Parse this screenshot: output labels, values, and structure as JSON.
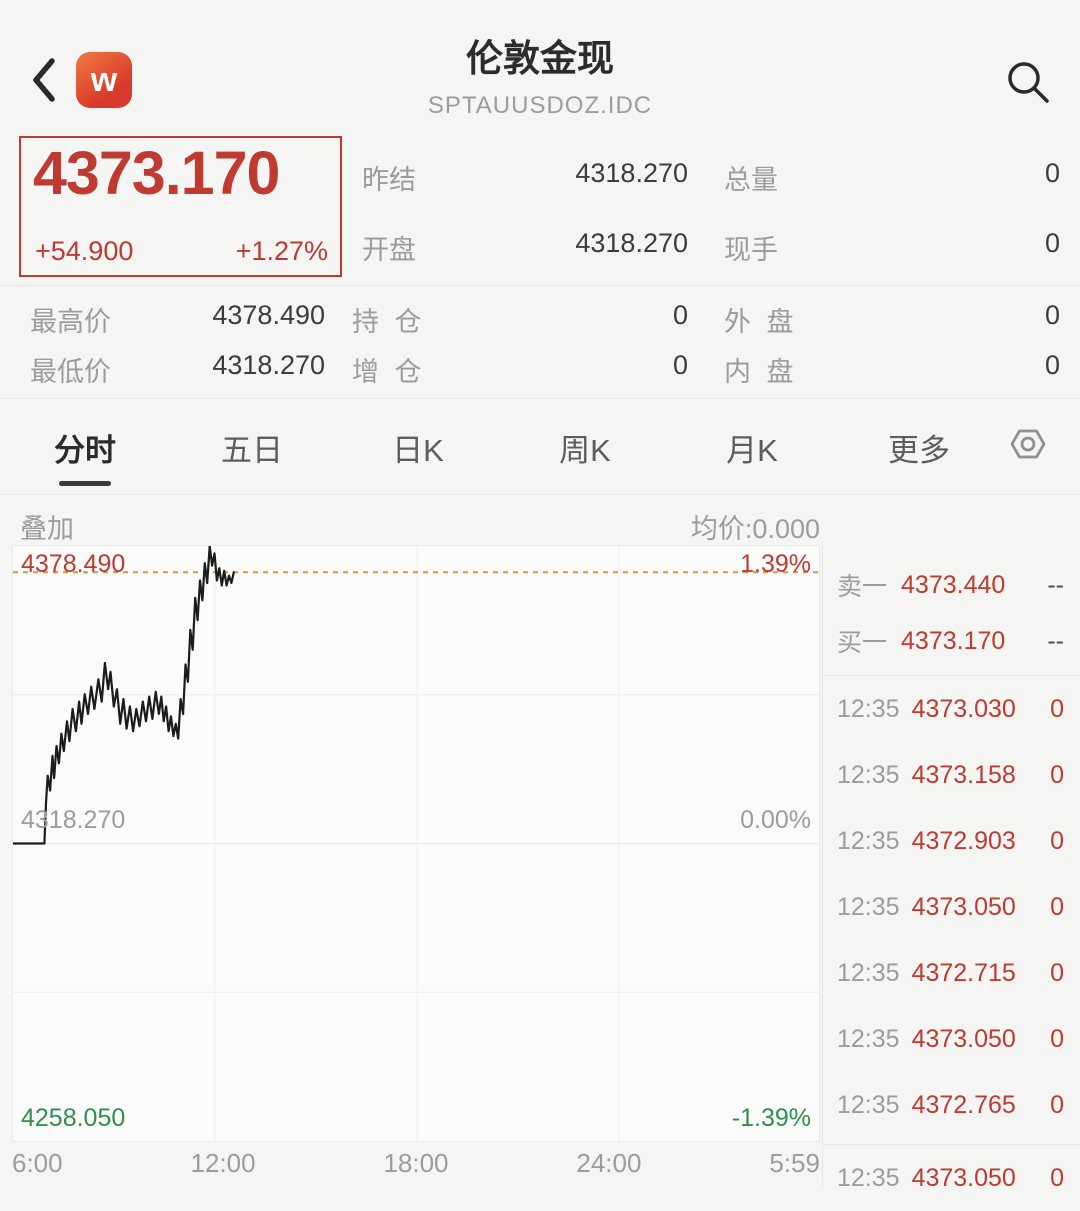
{
  "header": {
    "title": "伦敦金现",
    "subtitle": "SPTAUUSDOZ.IDC",
    "logo_text": "w"
  },
  "quote": {
    "last_price": "4373.170",
    "change": "+54.900",
    "change_percent": "+1.27%"
  },
  "stats": {
    "prev_settle_label": "昨结",
    "prev_settle": "4318.270",
    "total_volume_label": "总量",
    "total_volume": "0",
    "open_label": "开盘",
    "open": "4318.270",
    "current_hand_label": "现手",
    "current_hand": "0",
    "high_label": "最高价",
    "high": "4378.490",
    "open_interest_label": "持 仓",
    "open_interest": "0",
    "outer_label": "外 盘",
    "outer": "0",
    "low_label": "最低价",
    "low": "4318.270",
    "interest_change_label": "增 仓",
    "interest_change": "0",
    "inner_label": "内 盘",
    "inner": "0"
  },
  "tabs": [
    {
      "label": "分时",
      "active": true
    },
    {
      "label": "五日",
      "active": false
    },
    {
      "label": "日K",
      "active": false
    },
    {
      "label": "周K",
      "active": false
    },
    {
      "label": "月K",
      "active": false
    },
    {
      "label": "更多",
      "active": false
    }
  ],
  "chart_header": {
    "overlay": "叠加",
    "average": "均价:0.000"
  },
  "chart_data": {
    "type": "line",
    "title": "伦敦金现 分时走势",
    "y_max": 4378.49,
    "y_min": 4258.05,
    "prev_close": 4318.27,
    "last_price": 4373.17,
    "ylim": [
      4258.05,
      4378.49
    ],
    "grid": true,
    "x_ticks": [
      "6:00",
      "12:00",
      "18:00",
      "24:00",
      "5:59"
    ],
    "labels": {
      "high": "4378.490",
      "high_pct": "1.39%",
      "mid": "4318.270",
      "mid_pct": "0.00%",
      "low": "4258.050",
      "low_pct": "-1.39%"
    },
    "points": [
      [
        0.0,
        4318.27
      ],
      [
        0.039,
        4318.27
      ],
      [
        0.041,
        4326.5
      ],
      [
        0.043,
        4332.0
      ],
      [
        0.046,
        4329.0
      ],
      [
        0.049,
        4336.0
      ],
      [
        0.051,
        4331.5
      ],
      [
        0.054,
        4338.0
      ],
      [
        0.057,
        4334.5
      ],
      [
        0.06,
        4340.5
      ],
      [
        0.063,
        4337.0
      ],
      [
        0.067,
        4343.0
      ],
      [
        0.07,
        4339.0
      ],
      [
        0.074,
        4345.5
      ],
      [
        0.078,
        4341.0
      ],
      [
        0.082,
        4347.0
      ],
      [
        0.085,
        4342.5
      ],
      [
        0.089,
        4348.5
      ],
      [
        0.093,
        4344.5
      ],
      [
        0.097,
        4350.0
      ],
      [
        0.101,
        4345.5
      ],
      [
        0.106,
        4351.5
      ],
      [
        0.11,
        4347.0
      ],
      [
        0.114,
        4354.8
      ],
      [
        0.118,
        4349.5
      ],
      [
        0.121,
        4353.0
      ],
      [
        0.125,
        4346.0
      ],
      [
        0.129,
        4349.5
      ],
      [
        0.133,
        4342.5
      ],
      [
        0.137,
        4347.5
      ],
      [
        0.141,
        4341.5
      ],
      [
        0.145,
        4346.0
      ],
      [
        0.149,
        4341.0
      ],
      [
        0.153,
        4345.5
      ],
      [
        0.157,
        4342.0
      ],
      [
        0.161,
        4347.0
      ],
      [
        0.165,
        4343.0
      ],
      [
        0.169,
        4348.0
      ],
      [
        0.173,
        4343.5
      ],
      [
        0.177,
        4349.0
      ],
      [
        0.181,
        4344.5
      ],
      [
        0.184,
        4348.0
      ],
      [
        0.187,
        4343.0
      ],
      [
        0.19,
        4346.0
      ],
      [
        0.193,
        4341.0
      ],
      [
        0.196,
        4344.0
      ],
      [
        0.199,
        4340.0
      ],
      [
        0.202,
        4342.5
      ],
      [
        0.205,
        4339.5
      ],
      [
        0.208,
        4347.5
      ],
      [
        0.211,
        4344.5
      ],
      [
        0.214,
        4354.5
      ],
      [
        0.217,
        4351.0
      ],
      [
        0.22,
        4361.5
      ],
      [
        0.223,
        4357.5
      ],
      [
        0.226,
        4368.0
      ],
      [
        0.229,
        4363.5
      ],
      [
        0.232,
        4371.5
      ],
      [
        0.235,
        4367.5
      ],
      [
        0.238,
        4375.0
      ],
      [
        0.241,
        4371.0
      ],
      [
        0.244,
        4378.49
      ],
      [
        0.247,
        4374.5
      ],
      [
        0.25,
        4377.0
      ],
      [
        0.253,
        4371.5
      ],
      [
        0.256,
        4374.0
      ],
      [
        0.259,
        4370.5
      ],
      [
        0.262,
        4373.5
      ],
      [
        0.265,
        4370.5
      ],
      [
        0.268,
        4372.5
      ],
      [
        0.271,
        4371.0
      ],
      [
        0.274,
        4373.17
      ]
    ]
  },
  "order_book": {
    "sell": {
      "label": "卖一",
      "price": "4373.440",
      "volume": "--"
    },
    "buy": {
      "label": "买一",
      "price": "4373.170",
      "volume": "--"
    }
  },
  "trades": [
    {
      "time": "12:35",
      "price": "4373.030",
      "volume": "0"
    },
    {
      "time": "12:35",
      "price": "4373.158",
      "volume": "0"
    },
    {
      "time": "12:35",
      "price": "4372.903",
      "volume": "0"
    },
    {
      "time": "12:35",
      "price": "4373.050",
      "volume": "0"
    },
    {
      "time": "12:35",
      "price": "4372.715",
      "volume": "0"
    },
    {
      "time": "12:35",
      "price": "4373.050",
      "volume": "0"
    },
    {
      "time": "12:35",
      "price": "4372.765",
      "volume": "0"
    },
    {
      "time": "12:35",
      "price": "4373.050",
      "volume": "0"
    }
  ],
  "colors": {
    "up_red": "#bf3a30",
    "down_green": "#2f8e52",
    "avg_line_orange": "#e0923f",
    "price_line_black": "#1c1c1c"
  }
}
